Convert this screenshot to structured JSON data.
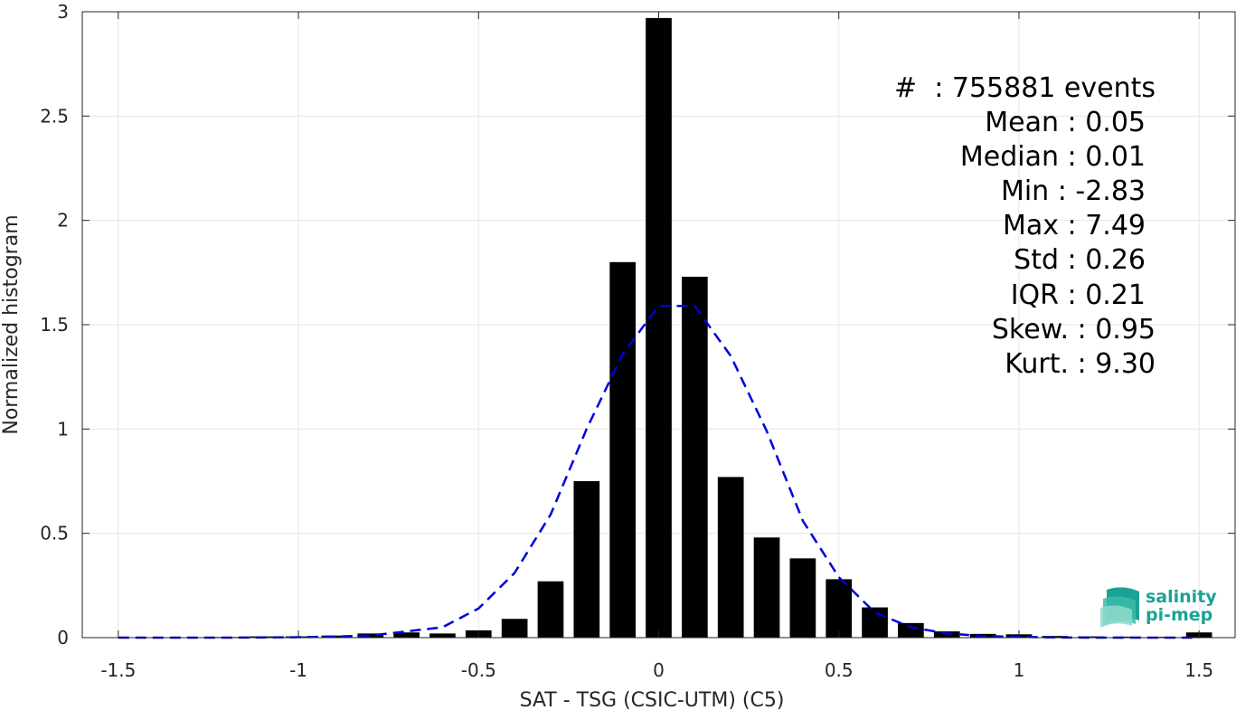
{
  "chart_data": {
    "type": "bar",
    "title": "",
    "xlabel": "SAT - TSG (CSIC-UTM) (C5)",
    "ylabel": "Normalized histogram",
    "xlim": [
      -1.6,
      1.6
    ],
    "ylim": [
      0,
      3
    ],
    "xticks": [
      -1.5,
      -1,
      -0.5,
      0,
      0.5,
      1,
      1.5
    ],
    "xtick_labels": [
      "-1.5",
      "-1",
      "-0.5",
      "0",
      "0.5",
      "1",
      "1.5"
    ],
    "yticks": [
      0,
      0.5,
      1,
      1.5,
      2,
      2.5,
      3
    ],
    "ytick_labels": [
      "0",
      "0.5",
      "1",
      "1.5",
      "2",
      "2.5",
      "3"
    ],
    "grid": true,
    "bar_color": "#000000",
    "fit_color": "#0000dd",
    "bin_width": 0.1,
    "series": [
      {
        "type": "bar",
        "x": [
          -1.5,
          -1.4,
          -1.3,
          -1.2,
          -1.1,
          -1.0,
          -0.9,
          -0.8,
          -0.7,
          -0.6,
          -0.5,
          -0.4,
          -0.3,
          -0.2,
          -0.1,
          0.0,
          0.1,
          0.2,
          0.3,
          0.4,
          0.5,
          0.6,
          0.7,
          0.8,
          0.9,
          1.0,
          1.1,
          1.2,
          1.3,
          1.4,
          1.5
        ],
        "values": [
          0.002,
          0.002,
          0.002,
          0.003,
          0.006,
          0.006,
          0.01,
          0.02,
          0.025,
          0.02,
          0.035,
          0.09,
          0.27,
          0.75,
          1.8,
          2.97,
          1.73,
          0.77,
          0.48,
          0.38,
          0.28,
          0.145,
          0.07,
          0.03,
          0.018,
          0.016,
          0.008,
          0.006,
          0.005,
          0.004,
          0.025
        ]
      },
      {
        "type": "line",
        "style": "dashed",
        "x": [
          -1.5,
          -1.4,
          -1.3,
          -1.2,
          -1.1,
          -1.0,
          -0.9,
          -0.8,
          -0.7,
          -0.6,
          -0.5,
          -0.4,
          -0.3,
          -0.2,
          -0.1,
          0.0,
          0.1,
          0.2,
          0.3,
          0.4,
          0.5,
          0.6,
          0.7,
          0.8,
          0.9,
          1.0,
          1.1,
          1.2,
          1.3,
          1.4,
          1.5
        ],
        "values": [
          0.0,
          0.0,
          0.0,
          0.0,
          0.001,
          0.002,
          0.005,
          0.01,
          0.03,
          0.05,
          0.14,
          0.31,
          0.59,
          1.0,
          1.36,
          1.59,
          1.59,
          1.35,
          0.99,
          0.56,
          0.29,
          0.12,
          0.05,
          0.02,
          0.008,
          0.004,
          0.001,
          0.0,
          0.0,
          0.0,
          0.0
        ]
      }
    ],
    "annotations": [
      "#  : 755881 events",
      "Mean : 0.05",
      "Median : 0.01",
      "Min : -2.83",
      "Max : 7.49",
      "Std : 0.26",
      "IQR : 0.21",
      "Skew. : 0.95",
      "Kurt. : 9.30"
    ]
  },
  "logo": {
    "line1": "salinity",
    "line2": "pi-mep",
    "color": "#1aa394"
  }
}
